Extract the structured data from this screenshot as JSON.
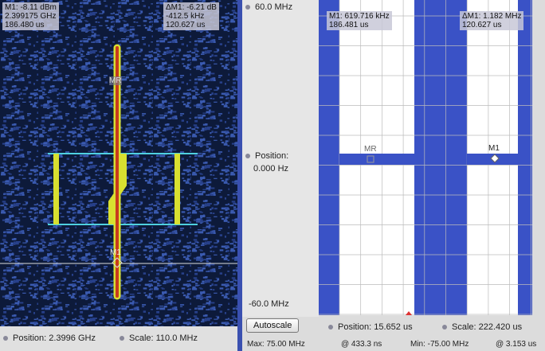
{
  "left_panel": {
    "marker_readout": [
      "M1: -8.11 dBm",
      "2.399175 GHz",
      "186.480 us"
    ],
    "delta_readout": [
      "ΔM1: -6.21 dB",
      "-412.5 kHz",
      "120.627 us"
    ],
    "markers": [
      "MR",
      "M1"
    ],
    "position": "Position: 2.3996 GHz",
    "scale": "Scale: 110.0 MHz"
  },
  "right_panel": {
    "top_label": "60.0 MHz",
    "position_label": "Position:",
    "position_value": "0.000 Hz",
    "bottom_label": "-60.0 MHz",
    "autoscale_button": "Autoscale",
    "marker_readout": [
      "M1: 619.716 kHz",
      "186.481 us"
    ],
    "delta_readout": [
      "ΔM1: 1.182 MHz",
      "120.627 us"
    ],
    "markers": [
      "MR",
      "M1"
    ],
    "position": "Position: 15.652 us",
    "scale": "Scale: 222.420 us"
  },
  "status_bar": [
    "Max: 75.00 MHz",
    "@ 433.3 ns",
    "Min: -75.00 MHz",
    "@ 3.153 us"
  ]
}
